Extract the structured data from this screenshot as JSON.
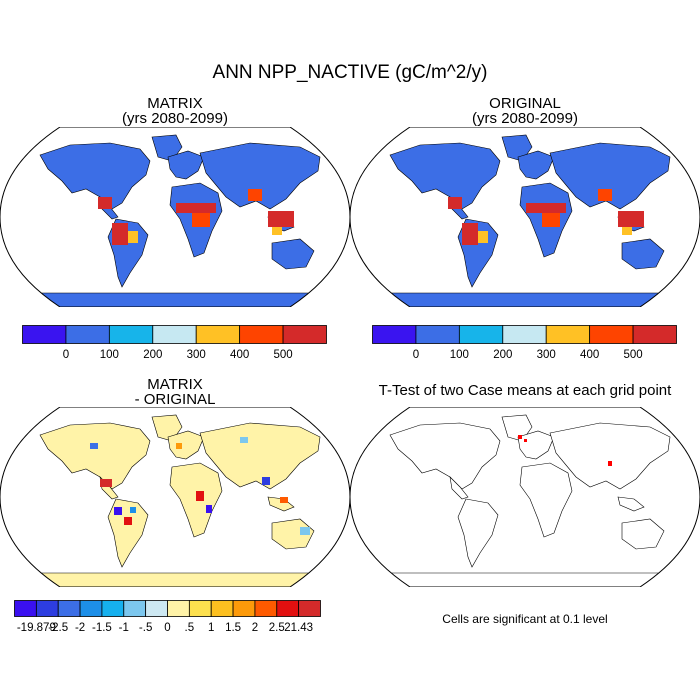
{
  "figure": {
    "title": "ANN NPP_NACTIVE (gC/m^2/y)",
    "note": "Cells are significant at 0.1 level"
  },
  "panels": {
    "matrix": {
      "title": "MATRIX",
      "subtitle": "(yrs 2080-2099)"
    },
    "original": {
      "title": "ORIGINAL",
      "subtitle": "(yrs 2080-2099)"
    },
    "diff": {
      "title": "MATRIX",
      "subtitle": "- ORIGINAL"
    },
    "ttest": {
      "title": "T-Test of two Case means at each grid point"
    }
  },
  "colorbars": {
    "abs": {
      "colors": [
        "#3a14f0",
        "#3c6ee6",
        "#17b4ea",
        "#c6e8f2",
        "#ffc125",
        "#fe4400",
        "#d42a2a"
      ],
      "labels": [
        "0",
        "100",
        "200",
        "300",
        "400",
        "500"
      ]
    },
    "diff": {
      "colors": [
        "#3a10f0",
        "#2d3de0",
        "#3c6ee6",
        "#1d8fe8",
        "#16b0ee",
        "#7cc7ee",
        "#cde8f2",
        "#fff3a8",
        "#fde04e",
        "#fdc020",
        "#fd9a0a",
        "#fe5a00",
        "#e21010",
        "#d42a2a"
      ],
      "labels": [
        "-19.879",
        "-2.5",
        "-2",
        "-1.5",
        "-1",
        "-.5",
        "0",
        ".5",
        "1",
        "1.5",
        "2",
        "2.5",
        "21.43"
      ]
    }
  },
  "map_fields": {
    "abs_background": "#3c6ee6",
    "abs_hotspots": [
      {
        "region": "central-america",
        "color": "#d42a2a"
      },
      {
        "region": "amazon",
        "color": "#d42a2a"
      },
      {
        "region": "central-africa",
        "color": "#d42a2a"
      },
      {
        "region": "southeast-asia",
        "color": "#d42a2a"
      },
      {
        "region": "india",
        "color": "#fe4400"
      },
      {
        "region": "brazil-east",
        "color": "#ffc125"
      }
    ],
    "diff_background": "#fff3a8",
    "ttest_significant_color": "#fe0000"
  }
}
